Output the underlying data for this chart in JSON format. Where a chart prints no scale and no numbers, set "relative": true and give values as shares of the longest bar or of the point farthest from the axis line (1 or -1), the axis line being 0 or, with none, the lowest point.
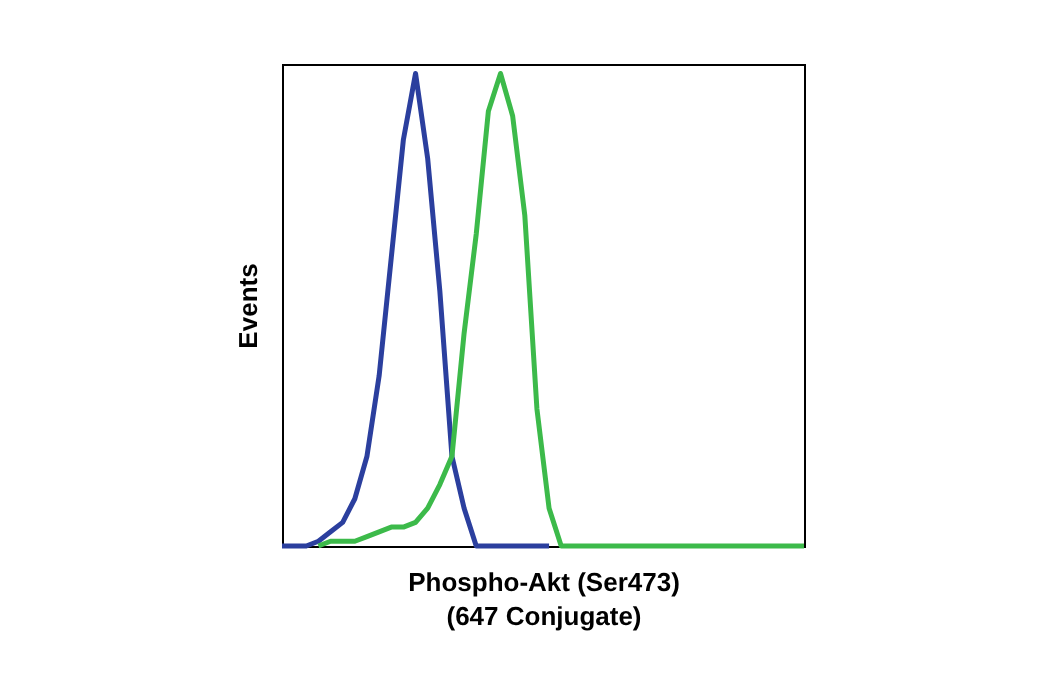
{
  "chart_data": {
    "type": "line",
    "relative": true,
    "xlabel": "Phospho-Akt (Ser473)\n(647 Conjugate)",
    "ylabel": "Events",
    "legend": false,
    "grid": false,
    "marker": "none",
    "line_style": "solid",
    "categories": [
      null,
      null,
      null,
      null,
      null,
      null,
      null,
      null,
      null,
      null,
      null,
      null,
      null,
      null,
      null,
      null,
      null,
      null,
      null,
      null,
      null,
      null,
      null,
      null,
      null,
      null,
      null,
      null,
      null,
      null,
      null,
      null,
      null,
      null,
      null,
      null,
      null,
      null,
      null,
      null,
      null,
      null,
      null,
      null
    ],
    "series": [
      {
        "color": "#2b3f9e",
        "values": [
          0,
          0,
          0,
          0.01,
          0.03,
          0.05,
          0.1,
          0.19,
          0.36,
          0.61,
          0.86,
          1,
          0.82,
          0.54,
          0.19,
          0.08,
          0,
          0,
          0,
          0,
          0,
          0,
          0,
          null,
          null,
          null,
          null,
          null,
          null,
          null,
          null,
          null,
          null,
          null,
          null,
          null,
          null,
          null,
          null,
          null,
          null,
          null,
          null,
          null
        ]
      },
      {
        "color": "#3cba4a",
        "values": [
          null,
          null,
          null,
          0,
          0.01,
          0.01,
          0.01,
          0.02,
          0.03,
          0.04,
          0.04,
          0.05,
          0.08,
          0.13,
          0.19,
          0.45,
          0.66,
          0.92,
          1,
          0.91,
          0.7,
          0.29,
          0.08,
          0,
          0,
          0,
          0,
          0,
          0,
          0,
          0,
          0,
          0,
          0,
          0,
          0,
          0,
          0,
          0,
          0,
          0,
          0,
          0,
          0
        ]
      }
    ]
  }
}
